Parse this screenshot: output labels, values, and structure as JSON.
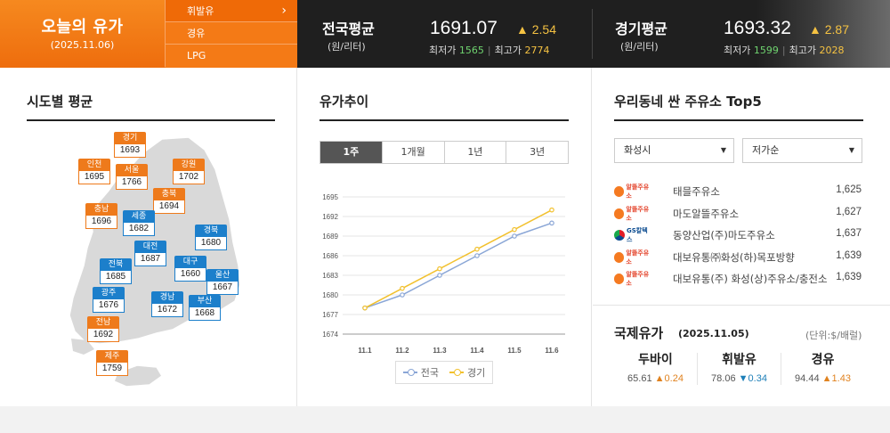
{
  "header": {
    "title": "오늘의 유가",
    "date": "(2025.11.06)",
    "fuel_menu": [
      {
        "label": "휘발유",
        "active": true
      },
      {
        "label": "경유",
        "active": false
      },
      {
        "label": "LPG",
        "active": false
      }
    ],
    "arrow_icon": "›"
  },
  "national_avg": {
    "name": "전국평균",
    "unit": "(원/리터)",
    "value": "1691.07",
    "diff": "▲ 2.54",
    "min_label": "최저가",
    "min_value": "1565",
    "max_label": "최고가",
    "max_value": "2774"
  },
  "gyeonggi_avg": {
    "name": "경기평균",
    "unit": "(원/리터)",
    "value": "1693.32",
    "diff": "▲ 2.87",
    "min_label": "최저가",
    "min_value": "1599",
    "max_label": "최고가",
    "max_value": "2028"
  },
  "regional": {
    "title": "시도별 평균",
    "cities": [
      {
        "name": "경기",
        "price": "1693",
        "style": "o"
      },
      {
        "name": "인천",
        "price": "1695",
        "style": "o"
      },
      {
        "name": "서울",
        "price": "1766",
        "style": "o"
      },
      {
        "name": "강원",
        "price": "1702",
        "style": "o"
      },
      {
        "name": "충북",
        "price": "1694",
        "style": "o"
      },
      {
        "name": "충남",
        "price": "1696",
        "style": "o"
      },
      {
        "name": "세종",
        "price": "1682",
        "style": "b"
      },
      {
        "name": "경북",
        "price": "1680",
        "style": "b"
      },
      {
        "name": "대전",
        "price": "1687",
        "style": "b"
      },
      {
        "name": "대구",
        "price": "1660",
        "style": "b"
      },
      {
        "name": "전북",
        "price": "1685",
        "style": "b"
      },
      {
        "name": "울산",
        "price": "1667",
        "style": "b"
      },
      {
        "name": "광주",
        "price": "1676",
        "style": "b"
      },
      {
        "name": "경남",
        "price": "1672",
        "style": "b"
      },
      {
        "name": "부산",
        "price": "1668",
        "style": "b"
      },
      {
        "name": "전남",
        "price": "1692",
        "style": "o"
      },
      {
        "name": "제주",
        "price": "1759",
        "style": "o"
      }
    ],
    "colors": {
      "orange": "#ee7a1b",
      "blue": "#1c7fcb"
    }
  },
  "trend": {
    "title": "유가추이",
    "tabs": [
      {
        "label": "1주",
        "active": true
      },
      {
        "label": "1개월",
        "active": false
      },
      {
        "label": "1년",
        "active": false
      },
      {
        "label": "3년",
        "active": false
      }
    ]
  },
  "chart_data": {
    "type": "line",
    "x": [
      "11.1",
      "11.2",
      "11.3",
      "11.4",
      "11.5",
      "11.6"
    ],
    "yticks": [
      1674,
      1677,
      1680,
      1683,
      1686,
      1689,
      1692,
      1695
    ],
    "ylim": [
      1674,
      1695
    ],
    "grid": true,
    "legend_position": "bottom",
    "series": [
      {
        "name": "전국",
        "color": "#8aa6d6",
        "values": [
          1678,
          1680,
          1683,
          1686,
          1689,
          1691
        ]
      },
      {
        "name": "경기",
        "color": "#f2c12e",
        "values": [
          1678,
          1681,
          1684,
          1687,
          1690,
          1693
        ]
      }
    ]
  },
  "stations": {
    "title": "우리동네 싼 주유소 Top5",
    "region_select": "화성시",
    "sort_select": "저가순",
    "items": [
      {
        "brand": "알뜰주유소",
        "logo": "alddeul",
        "name": "태믈주유소",
        "price": "1,625"
      },
      {
        "brand": "알뜰주유소",
        "logo": "alddeul",
        "name": "마도알뜰주유소",
        "price": "1,627"
      },
      {
        "brand": "GS칼텍스",
        "logo": "gs",
        "name": "동양산업(주)마도주유소",
        "price": "1,637"
      },
      {
        "brand": "알뜰주유소",
        "logo": "alddeul",
        "name": "대보유통㈜화성(하)목포방향",
        "price": "1,639"
      },
      {
        "brand": "알뜰주유소",
        "logo": "alddeul",
        "name": "대보유통(주) 화성(상)주유소/충전소",
        "price": "1,639"
      }
    ]
  },
  "international": {
    "title": "국제유가",
    "date": "(2025.11.05)",
    "unit": "(단위:$/배럴)",
    "items": [
      {
        "name": "두바이",
        "price": "65.61",
        "diff": "▲0.24",
        "dir": "up"
      },
      {
        "name": "휘발유",
        "price": "78.06",
        "diff": "▼0.34",
        "dir": "down"
      },
      {
        "name": "경유",
        "price": "94.44",
        "diff": "▲1.43",
        "dir": "up"
      }
    ]
  }
}
